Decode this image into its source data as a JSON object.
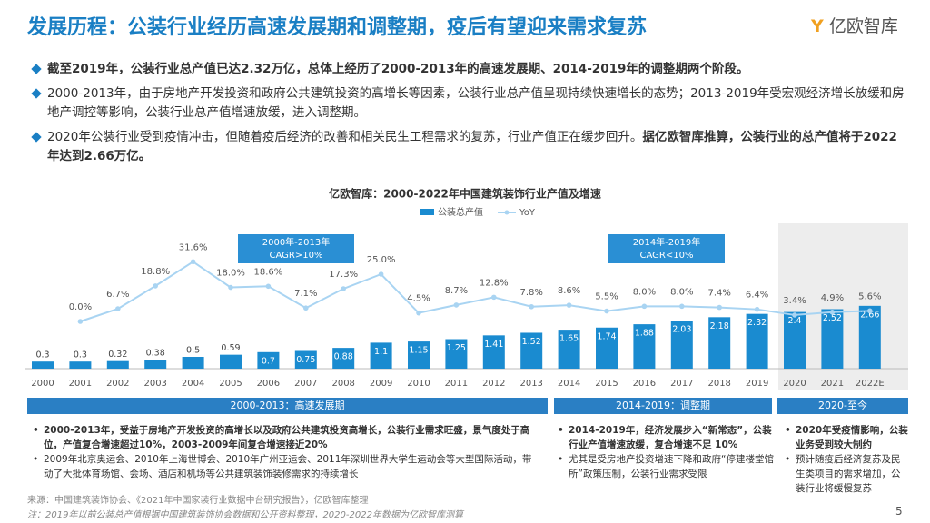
{
  "header": {
    "title": "发展历程：公装行业经历高速发展期和调整期，疫后有望迎来需求复苏",
    "logo": "亿欧智库"
  },
  "bullets": [
    {
      "segments": [
        {
          "text": "截至2019年，公装行业总产值已达2.32万亿，总体上经历了2000-2013年的高速发展期、2014-2019年的调整期两个阶段。",
          "bold": true
        }
      ]
    },
    {
      "segments": [
        {
          "text": "2000-2013年，由于房地产开发投资和政府公共建筑投资的高增长等因素，公装行业总产值呈现持续快速增长的态势；2013-2019年受宏观经济增长放缓和房地产调控等影响，公装行业总产值增速放缓，进入调整期。",
          "bold": false
        }
      ]
    },
    {
      "segments": [
        {
          "text": "2020年公装行业受到疫情冲击，但随着疫后经济的改善和相关民生工程需求的复苏，行业产值正在缓步回升。",
          "bold": false
        },
        {
          "text": "据亿欧智库推算，公装行业的总产值将于2022年达到2.66万亿。",
          "bold": true
        }
      ]
    }
  ],
  "chart_data": {
    "type": "bar",
    "title": "亿欧智库：2000-2022年中国建筑装饰行业产值及增速",
    "categories": [
      "2000",
      "2001",
      "2002",
      "2003",
      "2004",
      "2005",
      "2006",
      "2007",
      "2008",
      "2009",
      "2010",
      "2011",
      "2012",
      "2013",
      "2014",
      "2015",
      "2016",
      "2017",
      "2018",
      "2019",
      "2020",
      "2021",
      "2022E"
    ],
    "series": [
      {
        "name": "公装总产值",
        "color": "#1a8bd0",
        "values": [
          0.3,
          0.3,
          0.32,
          0.38,
          0.5,
          0.59,
          0.7,
          0.75,
          0.88,
          1.1,
          1.15,
          1.25,
          1.41,
          1.52,
          1.65,
          1.74,
          1.88,
          2.03,
          2.18,
          2.32,
          2.4,
          2.52,
          2.66
        ]
      },
      {
        "name": "YoY",
        "type": "line",
        "axis": "y2",
        "color": "#a9d4f2",
        "values": [
          null,
          0.0,
          6.7,
          18.8,
          31.6,
          18.0,
          18.6,
          7.1,
          17.3,
          25.0,
          4.5,
          8.7,
          12.8,
          7.8,
          8.6,
          5.5,
          8.0,
          8.0,
          7.4,
          6.4,
          3.4,
          4.9,
          5.6
        ],
        "value_labels": [
          null,
          "0.0%",
          "6.7%",
          "18.8%",
          "31.6%",
          "18.0%",
          "18.6%",
          "7.1%",
          "17.3%",
          "25.0%",
          "4.5%",
          "8.7%",
          "12.8%",
          "7.8%",
          "8.6%",
          "5.5%",
          "8.0%",
          "8.0%",
          "7.4%",
          "6.4%",
          "3.4%",
          "4.9%",
          "5.6%"
        ]
      }
    ],
    "ylim": [
      0,
      10
    ],
    "y2lim": [
      -25,
      100
    ],
    "annotations": [
      [
        "2000年-2013年",
        "CAGR>10%"
      ],
      [
        "2014年-2019年",
        "CAGR<10%"
      ]
    ]
  },
  "phases": [
    {
      "label": "2000-2013：高速发展期",
      "notes": [
        {
          "text": "2000-2013年，受益于房地产开发投资的高增长以及政府公共建筑投资高增长，公装行业需求旺盛，景气度处于高位，产值复合增速超过10%，2003-2009年间复合增速接近20%",
          "bold": true
        },
        {
          "text": "2009年北京奥运会、2010年上海世博会、2010年广州亚运会、2011年深圳世界大学生运动会等大型国际活动，带动了大批体育场馆、会场、酒店和机场等公共建筑装饰装修需求的持续增长",
          "bold": false
        }
      ]
    },
    {
      "label": "2014-2019：调整期",
      "notes": [
        {
          "text": "2014-2019年，经济发展步入“新常态”，公装行业产值增速放缓，复合增速不足 10%",
          "bold": true
        },
        {
          "text": "尤其是受房地产投资增速下降和政府“停建楼堂馆所”政策压制，公装行业需求受限",
          "bold": false
        }
      ]
    },
    {
      "label": "2020-至今",
      "notes": [
        {
          "text": "2020年受疫情影响，公装业务受到较大制约",
          "bold": true
        },
        {
          "text": "预计随疫后经济复苏及民生类项目的需求增加，公装行业将缓慢复苏",
          "bold": false
        }
      ]
    }
  ],
  "footnotes": [
    "来源：中国建筑装饰协会、《2021年中国家装行业数据中台研究报告》，亿欧智库整理",
    "注：2019年以前公装总产值根据中国建筑装饰协会数据和公开资料整理，2020-2022年数据为亿欧智库测算"
  ],
  "page_number": "5"
}
